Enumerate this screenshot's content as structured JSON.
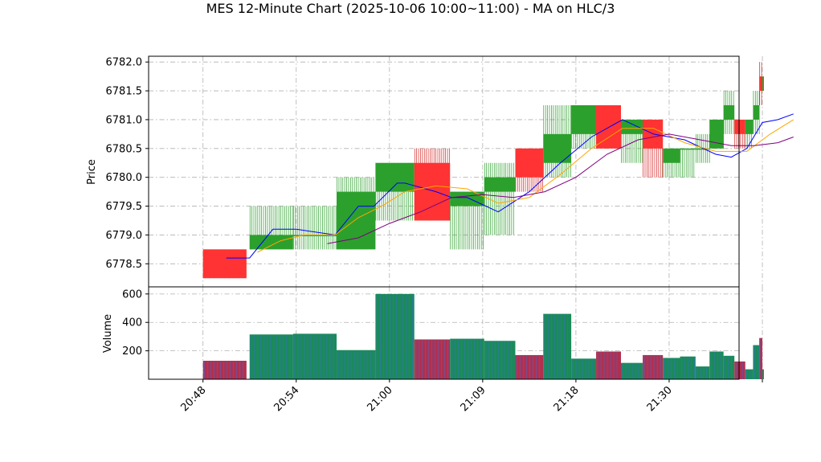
{
  "chart_data": {
    "type": "candlestick",
    "title": "MES 12-Minute Chart (2025-10-06 10:00~11:00) - MA on HLC/3",
    "price_panel": {
      "ylabel": "Price",
      "ylim": [
        6778.1,
        6782.1
      ],
      "yticks": [
        "6778.5",
        "6779.0",
        "6779.5",
        "6780.0",
        "6780.5",
        "6781.0",
        "6781.5",
        "6782.0"
      ],
      "ytick_values": [
        6778.5,
        6779.0,
        6779.5,
        6780.0,
        6780.5,
        6781.0,
        6781.5,
        6782.0
      ],
      "grid": true
    },
    "volume_panel": {
      "ylabel": "Volume",
      "ylim": [
        0,
        650
      ],
      "yticks": [
        "200",
        "400",
        "600"
      ],
      "ytick_values": [
        200,
        400,
        600
      ],
      "grid": true
    },
    "x_axis": {
      "xlim": [
        -3.5,
        34.5
      ],
      "tick_positions": [
        0,
        6,
        12,
        18,
        24,
        30,
        36
      ],
      "tick_labels": [
        "20:48",
        "20:54",
        "21:00",
        "21:09",
        "21:18",
        "21:30",
        ""
      ]
    },
    "candles": [
      {
        "x": 0.0,
        "w": 2.8,
        "open": 6778.75,
        "high": 6778.75,
        "low": 6778.25,
        "close": 6778.25,
        "volume": 130
      },
      {
        "x": 3.0,
        "w": 2.8,
        "open": 6778.75,
        "high": 6779.5,
        "low": 6778.75,
        "close": 6779.0,
        "volume": 315
      },
      {
        "x": 5.8,
        "w": 2.8,
        "open": 6779.0,
        "high": 6779.5,
        "low": 6778.75,
        "close": 6779.0,
        "volume": 320
      },
      {
        "x": 8.6,
        "w": 2.5,
        "open": 6778.75,
        "high": 6780.0,
        "low": 6778.75,
        "close": 6779.75,
        "volume": 205
      },
      {
        "x": 11.1,
        "w": 2.5,
        "open": 6779.75,
        "high": 6780.25,
        "low": 6779.25,
        "close": 6780.25,
        "volume": 600
      },
      {
        "x": 13.6,
        "w": 2.3,
        "open": 6780.25,
        "high": 6780.5,
        "low": 6779.25,
        "close": 6779.25,
        "volume": 280
      },
      {
        "x": 15.9,
        "w": 2.2,
        "open": 6779.5,
        "high": 6779.75,
        "low": 6778.75,
        "close": 6779.75,
        "volume": 285
      },
      {
        "x": 18.1,
        "w": 2.0,
        "open": 6779.75,
        "high": 6780.25,
        "low": 6779.0,
        "close": 6780.0,
        "volume": 270
      },
      {
        "x": 20.1,
        "w": 1.8,
        "open": 6780.5,
        "high": 6780.5,
        "low": 6779.75,
        "close": 6780.0,
        "volume": 170
      },
      {
        "x": 21.9,
        "w": 1.8,
        "open": 6780.25,
        "high": 6781.25,
        "low": 6780.0,
        "close": 6780.75,
        "volume": 460
      },
      {
        "x": 23.7,
        "w": 1.6,
        "open": 6780.75,
        "high": 6781.25,
        "low": 6780.5,
        "close": 6781.25,
        "volume": 145
      },
      {
        "x": 25.3,
        "w": 1.6,
        "open": 6781.25,
        "high": 6781.25,
        "low": 6780.5,
        "close": 6780.5,
        "volume": 195
      },
      {
        "x": 26.9,
        "w": 1.4,
        "open": 6780.75,
        "high": 6781.0,
        "low": 6780.25,
        "close": 6781.0,
        "volume": 115
      },
      {
        "x": 28.3,
        "w": 1.3,
        "open": 6781.0,
        "high": 6781.0,
        "low": 6780.0,
        "close": 6780.5,
        "volume": 170
      },
      {
        "x": 29.6,
        "w": 1.1,
        "open": 6780.25,
        "high": 6780.5,
        "low": 6780.0,
        "close": 6780.5,
        "volume": 150
      },
      {
        "x": 30.7,
        "w": 1.0,
        "open": 6780.5,
        "high": 6780.5,
        "low": 6780.0,
        "close": 6780.5,
        "volume": 160
      },
      {
        "x": 31.7,
        "w": 0.9,
        "open": 6780.5,
        "high": 6780.75,
        "low": 6780.25,
        "close": 6780.5,
        "volume": 90
      },
      {
        "x": 32.6,
        "w": 0.9,
        "open": 6780.5,
        "high": 6781.0,
        "low": 6780.5,
        "close": 6781.0,
        "volume": 195
      },
      {
        "x": 33.5,
        "w": 0.7,
        "open": 6781.0,
        "high": 6781.5,
        "low": 6780.75,
        "close": 6781.25,
        "volume": 165
      },
      {
        "x": 34.2,
        "w": 0.7,
        "open": 6781.0,
        "high": 6781.0,
        "low": 6780.5,
        "close": 6780.75,
        "volume": 125
      },
      {
        "x": 34.9,
        "w": 0.5,
        "open": 6780.75,
        "high": 6781.0,
        "low": 6780.5,
        "close": 6781.0,
        "volume": 70
      },
      {
        "x": 35.4,
        "w": 0.4,
        "open": 6781.0,
        "high": 6781.5,
        "low": 6780.75,
        "close": 6781.25,
        "volume": 240
      },
      {
        "x": 35.8,
        "w": 0.2,
        "open": 6781.75,
        "high": 6782.0,
        "low": 6781.25,
        "close": 6781.5,
        "volume": 290
      },
      {
        "x": 36.0,
        "w": 0.1,
        "open": 6781.5,
        "high": 6781.75,
        "low": 6781.5,
        "close": 6781.75,
        "volume": 70
      }
    ],
    "ma_series": [
      {
        "color": "#0000ff",
        "points": [
          [
            1.5,
            6778.6
          ],
          [
            3.0,
            6778.6
          ],
          [
            4.5,
            6779.1
          ],
          [
            6.0,
            6779.1
          ],
          [
            8.5,
            6779.0
          ],
          [
            10.0,
            6779.5
          ],
          [
            11.0,
            6779.5
          ],
          [
            12.5,
            6779.9
          ],
          [
            13.0,
            6779.9
          ],
          [
            15.0,
            6779.75
          ],
          [
            16.0,
            6779.65
          ],
          [
            17.0,
            6779.65
          ],
          [
            19.0,
            6779.4
          ],
          [
            21.0,
            6779.75
          ],
          [
            23.0,
            6780.25
          ],
          [
            25.0,
            6780.7
          ],
          [
            27.0,
            6781.0
          ],
          [
            29.0,
            6780.75
          ],
          [
            31.0,
            6780.65
          ],
          [
            33.0,
            6780.4
          ],
          [
            34.0,
            6780.35
          ],
          [
            35.0,
            6780.5
          ],
          [
            36.0,
            6780.95
          ],
          [
            37.0,
            6781.0
          ],
          [
            38.0,
            6781.1
          ]
        ]
      },
      {
        "color": "#ffa500",
        "points": [
          [
            3.5,
            6778.7
          ],
          [
            5.0,
            6778.9
          ],
          [
            6.5,
            6779.0
          ],
          [
            8.5,
            6779.0
          ],
          [
            10.0,
            6779.3
          ],
          [
            11.5,
            6779.5
          ],
          [
            13.0,
            6779.75
          ],
          [
            15.0,
            6779.85
          ],
          [
            17.0,
            6779.8
          ],
          [
            19.0,
            6779.55
          ],
          [
            21.0,
            6779.65
          ],
          [
            23.0,
            6780.05
          ],
          [
            25.0,
            6780.5
          ],
          [
            27.0,
            6780.85
          ],
          [
            29.0,
            6780.85
          ],
          [
            31.0,
            6780.6
          ],
          [
            33.0,
            6780.45
          ],
          [
            35.0,
            6780.45
          ],
          [
            36.5,
            6780.75
          ],
          [
            38.0,
            6781.0
          ]
        ]
      },
      {
        "color": "#800080",
        "points": [
          [
            8.0,
            6778.85
          ],
          [
            10.0,
            6778.95
          ],
          [
            12.0,
            6779.2
          ],
          [
            14.0,
            6779.4
          ],
          [
            16.0,
            6779.65
          ],
          [
            18.0,
            6779.7
          ],
          [
            20.0,
            6779.65
          ],
          [
            22.0,
            6779.75
          ],
          [
            24.0,
            6780.0
          ],
          [
            26.0,
            6780.4
          ],
          [
            28.0,
            6780.65
          ],
          [
            30.0,
            6780.75
          ],
          [
            32.0,
            6780.65
          ],
          [
            34.0,
            6780.55
          ],
          [
            35.5,
            6780.55
          ],
          [
            37.0,
            6780.6
          ],
          [
            38.0,
            6780.7
          ]
        ]
      }
    ],
    "colors": {
      "up": "#2ca02c",
      "down": "#ff3333",
      "up_wick": "#2ca02c",
      "down_wick": "#d62728",
      "vol_up_fill": "#1b8a5a",
      "vol_down_fill": "#b03050",
      "vol_stripe": "#3a6fd8"
    }
  }
}
